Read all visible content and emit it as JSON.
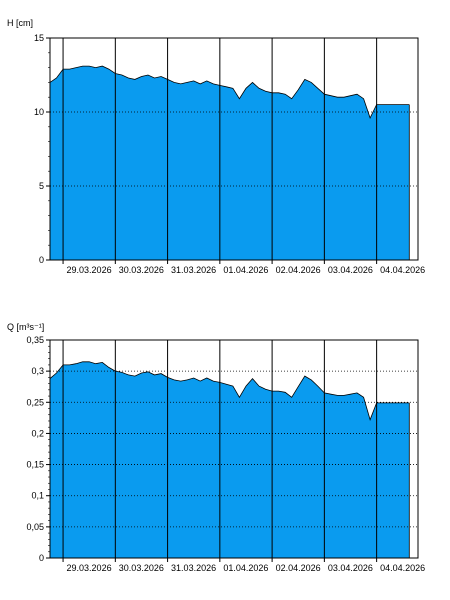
{
  "colors": {
    "fill": "#0a9bef",
    "line": "#000000",
    "grid": "#000000",
    "background": "#ffffff"
  },
  "chart_data": [
    {
      "type": "area",
      "ylabel": "H [cm]",
      "ylim": [
        0,
        15
      ],
      "yticks": [
        0,
        5,
        10,
        15
      ],
      "yticklabels": [
        "0",
        "5",
        "10",
        "15"
      ],
      "grid": {
        "horizontal": "dotted",
        "vertical_day_lines": "solid"
      },
      "xlim": [
        "2026-03-28T18:00",
        "2026-04-04T19:00"
      ],
      "day_lines": [
        "2026-03-29T00:00",
        "2026-03-30T00:00",
        "2026-03-31T00:00",
        "2026-04-01T00:00",
        "2026-04-02T00:00",
        "2026-04-03T00:00",
        "2026-04-04T00:00"
      ],
      "x_tick_labels": [
        "29.03.2026",
        "30.03.2026",
        "31.03.2026",
        "01.04.2026",
        "02.04.2026",
        "03.04.2026",
        "04.04.2026"
      ],
      "series": [
        {
          "x": [
            "2026-03-28T18:00",
            "2026-03-28T21:00",
            "2026-03-29T00:00",
            "2026-03-29T03:00",
            "2026-03-29T06:00",
            "2026-03-29T09:00",
            "2026-03-29T12:00",
            "2026-03-29T15:00",
            "2026-03-29T18:00",
            "2026-03-29T21:00",
            "2026-03-30T00:00",
            "2026-03-30T03:00",
            "2026-03-30T06:00",
            "2026-03-30T09:00",
            "2026-03-30T12:00",
            "2026-03-30T15:00",
            "2026-03-30T18:00",
            "2026-03-30T21:00",
            "2026-03-31T00:00",
            "2026-03-31T03:00",
            "2026-03-31T06:00",
            "2026-03-31T09:00",
            "2026-03-31T12:00",
            "2026-03-31T15:00",
            "2026-03-31T18:00",
            "2026-03-31T21:00",
            "2026-04-01T00:00",
            "2026-04-01T03:00",
            "2026-04-01T06:00",
            "2026-04-01T09:00",
            "2026-04-01T12:00",
            "2026-04-01T15:00",
            "2026-04-01T18:00",
            "2026-04-01T21:00",
            "2026-04-02T00:00",
            "2026-04-02T03:00",
            "2026-04-02T06:00",
            "2026-04-02T09:00",
            "2026-04-02T12:00",
            "2026-04-02T15:00",
            "2026-04-02T18:00",
            "2026-04-02T21:00",
            "2026-04-03T00:00",
            "2026-04-03T03:00",
            "2026-04-03T06:00",
            "2026-04-03T09:00",
            "2026-04-03T12:00",
            "2026-04-03T15:00",
            "2026-04-03T18:00",
            "2026-04-03T21:00",
            "2026-04-04T00:00",
            "2026-04-04T06:00",
            "2026-04-04T12:00",
            "2026-04-04T15:00"
          ],
          "y": [
            12.0,
            12.3,
            12.9,
            12.9,
            13.0,
            13.1,
            13.1,
            13.0,
            13.1,
            12.9,
            12.6,
            12.5,
            12.3,
            12.2,
            12.4,
            12.5,
            12.3,
            12.4,
            12.2,
            12.0,
            11.9,
            12.0,
            12.1,
            11.9,
            12.1,
            11.9,
            11.8,
            11.7,
            11.6,
            10.9,
            11.6,
            12.0,
            11.6,
            11.4,
            11.3,
            11.3,
            11.2,
            10.9,
            11.5,
            12.2,
            12.0,
            11.6,
            11.2,
            11.1,
            11.0,
            11.0,
            11.1,
            11.2,
            10.9,
            9.6,
            10.5,
            10.5,
            10.5,
            10.5
          ]
        }
      ]
    },
    {
      "type": "area",
      "ylabel": "Q [m³s⁻¹]",
      "ylim": [
        0,
        0.35
      ],
      "yticks": [
        0,
        0.05,
        0.1,
        0.15,
        0.2,
        0.25,
        0.3,
        0.35
      ],
      "yticklabels": [
        "0",
        "0,05",
        "0,1",
        "0,15",
        "0,2",
        "0,25",
        "0,3",
        "0,35"
      ],
      "grid": {
        "horizontal": "dotted",
        "vertical_day_lines": "solid"
      },
      "xlim": [
        "2026-03-28T18:00",
        "2026-04-04T19:00"
      ],
      "day_lines": [
        "2026-03-29T00:00",
        "2026-03-30T00:00",
        "2026-03-31T00:00",
        "2026-04-01T00:00",
        "2026-04-02T00:00",
        "2026-04-03T00:00",
        "2026-04-04T00:00"
      ],
      "x_tick_labels": [
        "29.03.2026",
        "30.03.2026",
        "31.03.2026",
        "01.04.2026",
        "02.04.2026",
        "03.04.2026",
        "04.04.2026"
      ],
      "series": [
        {
          "x": [
            "2026-03-28T18:00",
            "2026-03-28T21:00",
            "2026-03-29T00:00",
            "2026-03-29T03:00",
            "2026-03-29T06:00",
            "2026-03-29T09:00",
            "2026-03-29T12:00",
            "2026-03-29T15:00",
            "2026-03-29T18:00",
            "2026-03-29T21:00",
            "2026-03-30T00:00",
            "2026-03-30T03:00",
            "2026-03-30T06:00",
            "2026-03-30T09:00",
            "2026-03-30T12:00",
            "2026-03-30T15:00",
            "2026-03-30T18:00",
            "2026-03-30T21:00",
            "2026-03-31T00:00",
            "2026-03-31T03:00",
            "2026-03-31T06:00",
            "2026-03-31T09:00",
            "2026-03-31T12:00",
            "2026-03-31T15:00",
            "2026-03-31T18:00",
            "2026-03-31T21:00",
            "2026-04-01T00:00",
            "2026-04-01T03:00",
            "2026-04-01T06:00",
            "2026-04-01T09:00",
            "2026-04-01T12:00",
            "2026-04-01T15:00",
            "2026-04-01T18:00",
            "2026-04-01T21:00",
            "2026-04-02T00:00",
            "2026-04-02T03:00",
            "2026-04-02T06:00",
            "2026-04-02T09:00",
            "2026-04-02T12:00",
            "2026-04-02T15:00",
            "2026-04-02T18:00",
            "2026-04-02T21:00",
            "2026-04-03T00:00",
            "2026-04-03T03:00",
            "2026-04-03T06:00",
            "2026-04-03T09:00",
            "2026-04-03T12:00",
            "2026-04-03T15:00",
            "2026-04-03T18:00",
            "2026-04-03T21:00",
            "2026-04-04T00:00",
            "2026-04-04T06:00",
            "2026-04-04T12:00",
            "2026-04-04T15:00"
          ],
          "y": [
            0.288,
            0.297,
            0.31,
            0.31,
            0.312,
            0.315,
            0.315,
            0.312,
            0.314,
            0.306,
            0.3,
            0.298,
            0.294,
            0.292,
            0.297,
            0.299,
            0.294,
            0.296,
            0.29,
            0.286,
            0.284,
            0.286,
            0.289,
            0.284,
            0.289,
            0.284,
            0.282,
            0.279,
            0.276,
            0.258,
            0.276,
            0.288,
            0.276,
            0.271,
            0.268,
            0.268,
            0.266,
            0.258,
            0.275,
            0.292,
            0.286,
            0.276,
            0.265,
            0.263,
            0.261,
            0.261,
            0.263,
            0.265,
            0.258,
            0.222,
            0.249,
            0.249,
            0.249,
            0.249
          ]
        }
      ]
    }
  ]
}
